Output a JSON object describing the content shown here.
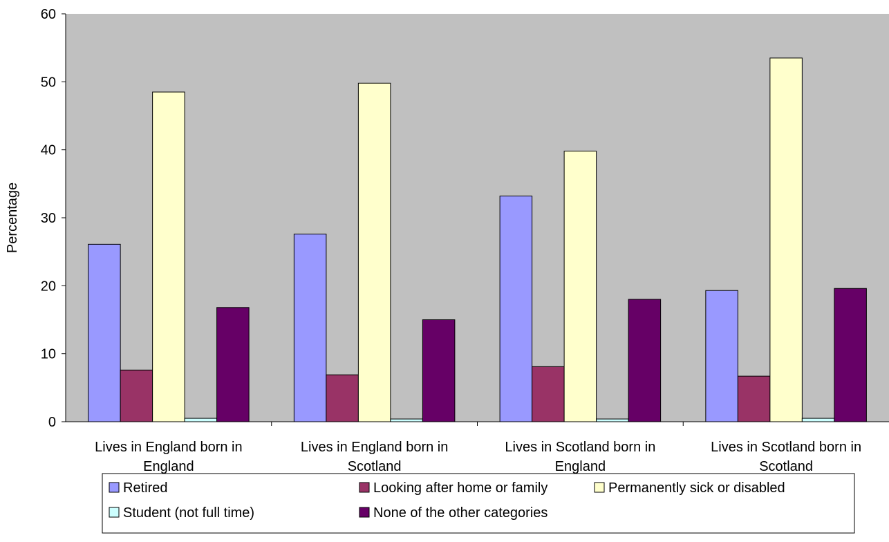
{
  "chart_data": {
    "type": "bar",
    "title": "",
    "xlabel": "",
    "ylabel": "Percentage",
    "ylim": [
      0,
      60
    ],
    "yticks": [
      0,
      10,
      20,
      30,
      40,
      50,
      60
    ],
    "grid": false,
    "legend_position": "bottom",
    "categories": [
      [
        "Lives in England born in",
        "England"
      ],
      [
        "Lives in England born in",
        "Scotland"
      ],
      [
        "Lives in Scotland born in",
        "England"
      ],
      [
        "Lives in Scotland born in",
        "Scotland"
      ]
    ],
    "series": [
      {
        "name": "Retired",
        "color": "#9999ff",
        "values": [
          26.1,
          27.6,
          33.2,
          19.3
        ]
      },
      {
        "name": "Looking after home or family",
        "color": "#993366",
        "values": [
          7.6,
          6.9,
          8.1,
          6.7
        ]
      },
      {
        "name": "Permanently sick or disabled",
        "color": "#ffffcc",
        "values": [
          48.5,
          49.8,
          39.8,
          53.5
        ]
      },
      {
        "name": "Student (not full time)",
        "color": "#ccffff",
        "values": [
          0.5,
          0.4,
          0.4,
          0.5
        ]
      },
      {
        "name": "None of the other categories",
        "color": "#660066",
        "values": [
          16.8,
          15.0,
          18.0,
          19.6
        ]
      }
    ],
    "plot_background": "#c0c0c0"
  }
}
